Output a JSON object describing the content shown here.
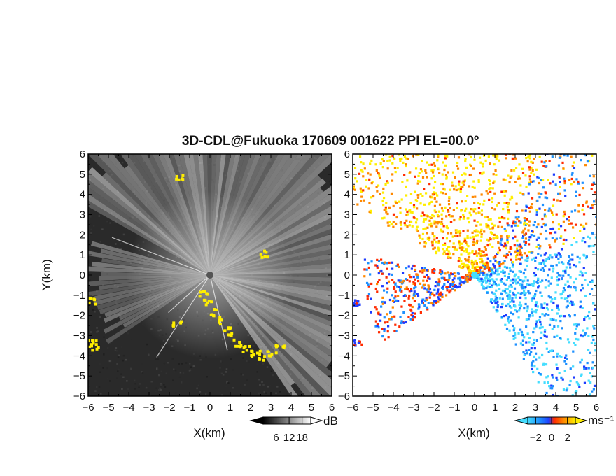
{
  "chart_data": [
    {
      "type": "heatmap",
      "panel": "reflectivity",
      "title": "3D-CDL@Fukuoka 170609 001622 PPI EL=00.0º",
      "xlabel": "X(km)",
      "ylabel": "Y(km)",
      "xlim": [
        -6,
        6
      ],
      "ylim": [
        -6,
        6
      ],
      "xticks": [
        -6,
        -5,
        -4,
        -3,
        -2,
        -1,
        0,
        1,
        2,
        3,
        4,
        5,
        6
      ],
      "yticks": [
        -6,
        -5,
        -4,
        -3,
        -2,
        -1,
        0,
        1,
        2,
        3,
        4,
        5,
        6
      ],
      "colorbar": {
        "unit": "dB",
        "ticks": [
          6,
          12,
          18
        ],
        "range": [
          0,
          22
        ],
        "colormap": "grayscale"
      },
      "highlight_color": "#ffee00",
      "background_color": "#2a2a2a"
    },
    {
      "type": "heatmap",
      "panel": "doppler-velocity",
      "xlabel": "X(km)",
      "ylabel": "",
      "xlim": [
        -6,
        6
      ],
      "ylim": [
        -6,
        6
      ],
      "xticks": [
        -6,
        -5,
        -4,
        -3,
        -2,
        -1,
        0,
        1,
        2,
        3,
        4,
        5,
        6
      ],
      "yticks": [
        -6,
        -5,
        -4,
        -3,
        -2,
        -1,
        0,
        1,
        2,
        3,
        4,
        5,
        6
      ],
      "colorbar": {
        "unit": "ms⁻¹",
        "ticks": [
          -2,
          0,
          2
        ],
        "range": [
          -3,
          3
        ],
        "colormap": "cyan-blue-red-orange-yellow"
      },
      "background_color": "#ffffff"
    }
  ]
}
